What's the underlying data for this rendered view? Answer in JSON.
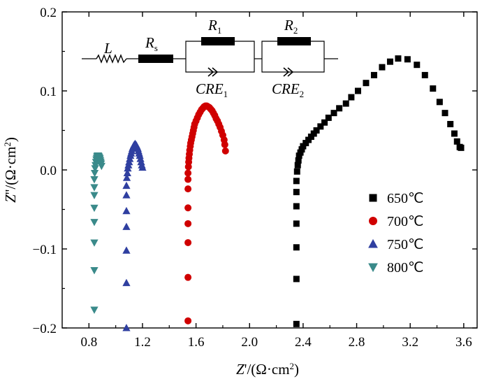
{
  "chart_data": {
    "type": "scatter",
    "xlabel": {
      "prefix": "Z'/(Ω·cm",
      "sup": "2",
      "suffix": ")"
    },
    "ylabel": {
      "prefix": "Z''/(Ω·cm",
      "sup": "2",
      "suffix": ")"
    },
    "xlim": [
      0.6,
      3.7
    ],
    "ylim": [
      -0.2,
      0.2
    ],
    "xticks": [
      0.8,
      1.2,
      1.6,
      2.0,
      2.4,
      2.8,
      3.2,
      3.6
    ],
    "xtick_labels": [
      "0.8",
      "1.2",
      "1.6",
      "2.0",
      "2.4",
      "2.8",
      "3.2",
      "3.6"
    ],
    "yticks": [
      -0.2,
      -0.1,
      0.0,
      0.1,
      0.2
    ],
    "ytick_labels": [
      "−0.2",
      "−0.1",
      "0.0",
      "0.1",
      "0.2"
    ],
    "grid": false,
    "legend_position": "right",
    "series": [
      {
        "name": "650℃",
        "marker": "square",
        "color": "#000000",
        "x": [
          2.35,
          2.35,
          2.35,
          2.35,
          2.35,
          2.35,
          2.35,
          2.355,
          2.36,
          2.365,
          2.37,
          2.38,
          2.39,
          2.4,
          2.42,
          2.44,
          2.46,
          2.48,
          2.5,
          2.53,
          2.56,
          2.59,
          2.63,
          2.67,
          2.72,
          2.76,
          2.81,
          2.87,
          2.93,
          2.99,
          3.05,
          3.11,
          3.18,
          3.25,
          3.31,
          3.37,
          3.42,
          3.46,
          3.5,
          3.53,
          3.55,
          3.57,
          3.58
        ],
        "y": [
          -0.195,
          -0.138,
          -0.098,
          -0.068,
          -0.046,
          -0.028,
          -0.014,
          -0.002,
          0.006,
          0.012,
          0.018,
          0.022,
          0.026,
          0.03,
          0.034,
          0.038,
          0.042,
          0.046,
          0.05,
          0.055,
          0.06,
          0.066,
          0.072,
          0.078,
          0.084,
          0.092,
          0.1,
          0.11,
          0.12,
          0.13,
          0.137,
          0.141,
          0.14,
          0.133,
          0.12,
          0.103,
          0.086,
          0.072,
          0.058,
          0.046,
          0.036,
          0.029,
          0.028
        ]
      },
      {
        "name": "700℃",
        "marker": "circle",
        "color": "#d00000",
        "x": [
          1.54,
          1.54,
          1.54,
          1.54,
          1.54,
          1.54,
          1.54,
          1.54,
          1.543,
          1.545,
          1.547,
          1.55,
          1.553,
          1.557,
          1.56,
          1.565,
          1.57,
          1.575,
          1.58,
          1.585,
          1.59,
          1.6,
          1.61,
          1.62,
          1.63,
          1.64,
          1.65,
          1.66,
          1.67,
          1.68,
          1.69,
          1.7,
          1.71,
          1.72,
          1.73,
          1.74,
          1.75,
          1.76,
          1.77,
          1.78,
          1.79,
          1.8,
          1.81,
          1.815,
          1.82
        ],
        "y": [
          -0.191,
          -0.136,
          -0.092,
          -0.068,
          -0.048,
          -0.024,
          -0.012,
          -0.004,
          0.004,
          0.01,
          0.015,
          0.02,
          0.025,
          0.03,
          0.034,
          0.038,
          0.042,
          0.046,
          0.05,
          0.054,
          0.058,
          0.062,
          0.066,
          0.07,
          0.073,
          0.076,
          0.078,
          0.08,
          0.081,
          0.081,
          0.08,
          0.079,
          0.077,
          0.075,
          0.072,
          0.069,
          0.065,
          0.062,
          0.058,
          0.054,
          0.049,
          0.044,
          0.038,
          0.032,
          0.024
        ]
      },
      {
        "name": "750℃",
        "marker": "triangle-up",
        "color": "#2f3fa0",
        "x": [
          1.08,
          1.08,
          1.08,
          1.08,
          1.08,
          1.08,
          1.08,
          1.083,
          1.087,
          1.09,
          1.095,
          1.1,
          1.105,
          1.11,
          1.115,
          1.12,
          1.125,
          1.13,
          1.135,
          1.14,
          1.145,
          1.15,
          1.155,
          1.16,
          1.165,
          1.17,
          1.175,
          1.18,
          1.185,
          1.19,
          1.195,
          1.2
        ],
        "y": [
          -0.2,
          -0.143,
          -0.102,
          -0.072,
          -0.052,
          -0.032,
          -0.02,
          -0.01,
          -0.004,
          0.002,
          0.006,
          0.01,
          0.014,
          0.018,
          0.021,
          0.024,
          0.027,
          0.029,
          0.031,
          0.032,
          0.033,
          0.032,
          0.031,
          0.029,
          0.027,
          0.024,
          0.021,
          0.018,
          0.014,
          0.01,
          0.006,
          0.003
        ]
      },
      {
        "name": "800℃",
        "marker": "triangle-down",
        "color": "#3a8a8a",
        "x": [
          0.84,
          0.84,
          0.84,
          0.84,
          0.84,
          0.84,
          0.84,
          0.84,
          0.843,
          0.846,
          0.849,
          0.852,
          0.855,
          0.858,
          0.861,
          0.864,
          0.867,
          0.87,
          0.873,
          0.876,
          0.879,
          0.882,
          0.885,
          0.888,
          0.891,
          0.894
        ],
        "y": [
          -0.177,
          -0.127,
          -0.092,
          -0.066,
          -0.048,
          -0.032,
          -0.022,
          -0.012,
          -0.004,
          0.002,
          0.006,
          0.01,
          0.013,
          0.015,
          0.017,
          0.018,
          0.018,
          0.018,
          0.017,
          0.016,
          0.015,
          0.014,
          0.012,
          0.01,
          0.008,
          0.005
        ]
      }
    ]
  },
  "circuit": {
    "labels": {
      "L": "L",
      "Rs_main": "R",
      "Rs_sub": "s",
      "R1_main": "R",
      "R1_sub": "1",
      "R2_main": "R",
      "R2_sub": "2",
      "CRE1_main": "CRE",
      "CRE1_sub": "1",
      "CRE2_main": "CRE",
      "CRE2_sub": "2"
    }
  }
}
